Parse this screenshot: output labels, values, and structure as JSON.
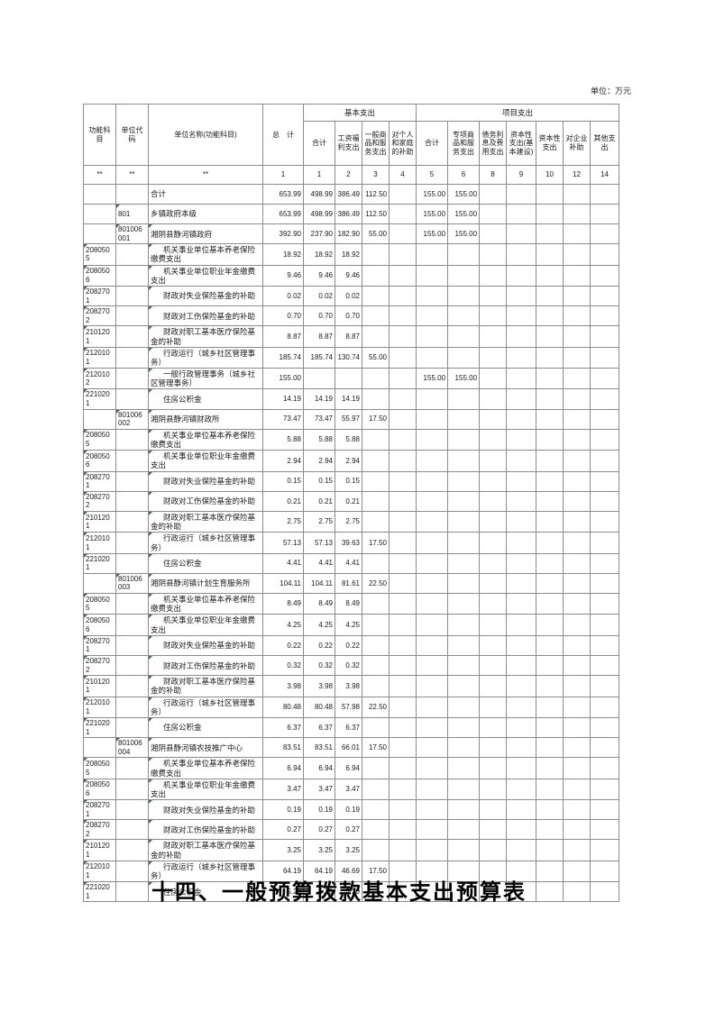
{
  "page": {
    "unit_note": "单位：万元",
    "title": "十四、一般预算拨款基本支出预算表"
  },
  "colors": {
    "grid_line": "#8c8c8c",
    "error_marker_green": "#2f7d32",
    "text": "#1a1a1a",
    "background": "#ffffff"
  },
  "table": {
    "header": {
      "func_code": "功能科目",
      "unit_code": "单位代码",
      "unit_name": "单位名称(功能科目)",
      "total": "总　计",
      "basic_group": "基本支出",
      "project_group": "项目支出",
      "basic_cols": [
        "合计",
        "工资福利支出",
        "一般商品和服务支出",
        "对个人和家庭的补助"
      ],
      "project_cols": [
        "合计",
        "专项商品和服务支出",
        "债务利息及费用支出",
        "资本性支出(基本建设)",
        "资本性支出",
        "对企业补助",
        "其他支出"
      ],
      "index_row": [
        "**",
        "**",
        "**",
        "1",
        "1",
        "2",
        "3",
        "4",
        "5",
        "6",
        "8",
        "9",
        "10",
        "12",
        "14"
      ]
    },
    "rows": [
      {
        "func": "",
        "unit": "",
        "name": "合计",
        "level": 0,
        "vals": [
          "653.99",
          "498.99",
          "386.49",
          "112.50",
          "",
          "155.00",
          "155.00",
          "",
          "",
          "",
          "",
          ""
        ]
      },
      {
        "func": "",
        "unit": "801",
        "name": "乡镇政府本级",
        "level": 0,
        "vals": [
          "653.99",
          "498.99",
          "386.49",
          "112.50",
          "",
          "155.00",
          "155.00",
          "",
          "",
          "",
          "",
          ""
        ]
      },
      {
        "func": "",
        "unit": "801006001",
        "name": "湘阴县静河镇政府",
        "level": 1,
        "vals": [
          "392.90",
          "237.90",
          "182.90",
          "55.00",
          "",
          "155.00",
          "155.00",
          "",
          "",
          "",
          "",
          ""
        ]
      },
      {
        "func": "2080505",
        "unit": "",
        "name": "机关事业单位基本养老保险缴费支出",
        "level": 2,
        "vals": [
          "18.92",
          "18.92",
          "18.92",
          "",
          "",
          "",
          "",
          "",
          "",
          "",
          "",
          ""
        ]
      },
      {
        "func": "2080506",
        "unit": "",
        "name": "机关事业单位职业年金缴费支出",
        "level": 2,
        "vals": [
          "9.46",
          "9.46",
          "9.46",
          "",
          "",
          "",
          "",
          "",
          "",
          "",
          "",
          ""
        ]
      },
      {
        "func": "2082701",
        "unit": "",
        "name": "财政对失业保险基金的补助",
        "level": 2,
        "vals": [
          "0.02",
          "0.02",
          "0.02",
          "",
          "",
          "",
          "",
          "",
          "",
          "",
          "",
          ""
        ]
      },
      {
        "func": "2082702",
        "unit": "",
        "name": "财政对工伤保险基金的补助",
        "level": 2,
        "vals": [
          "0.70",
          "0.70",
          "0.70",
          "",
          "",
          "",
          "",
          "",
          "",
          "",
          "",
          ""
        ]
      },
      {
        "func": "2101201",
        "unit": "",
        "name": "财政对职工基本医疗保险基金的补助",
        "level": 2,
        "vals": [
          "8.87",
          "8.87",
          "8.87",
          "",
          "",
          "",
          "",
          "",
          "",
          "",
          "",
          ""
        ]
      },
      {
        "func": "2120101",
        "unit": "",
        "name": "行政运行（城乡社区管理事务）",
        "level": 2,
        "vals": [
          "185.74",
          "185.74",
          "130.74",
          "55.00",
          "",
          "",
          "",
          "",
          "",
          "",
          "",
          ""
        ]
      },
      {
        "func": "2120102",
        "unit": "",
        "name": "一般行政管理事务（城乡社区管理事务）",
        "level": 2,
        "vals": [
          "155.00",
          "",
          "",
          "",
          "",
          "155.00",
          "155.00",
          "",
          "",
          "",
          "",
          ""
        ]
      },
      {
        "func": "2210201",
        "unit": "",
        "name": "住房公积金",
        "level": 2,
        "vals": [
          "14.19",
          "14.19",
          "14.19",
          "",
          "",
          "",
          "",
          "",
          "",
          "",
          "",
          ""
        ]
      },
      {
        "func": "",
        "unit": "801006002",
        "name": "湘阴县静河镇财政所",
        "level": 1,
        "vals": [
          "73.47",
          "73.47",
          "55.97",
          "17.50",
          "",
          "",
          "",
          "",
          "",
          "",
          "",
          ""
        ]
      },
      {
        "func": "2080505",
        "unit": "",
        "name": "机关事业单位基本养老保险缴费支出",
        "level": 2,
        "vals": [
          "5.88",
          "5.88",
          "5.88",
          "",
          "",
          "",
          "",
          "",
          "",
          "",
          "",
          ""
        ]
      },
      {
        "func": "2080506",
        "unit": "",
        "name": "机关事业单位职业年金缴费支出",
        "level": 2,
        "vals": [
          "2.94",
          "2.94",
          "2.94",
          "",
          "",
          "",
          "",
          "",
          "",
          "",
          "",
          ""
        ]
      },
      {
        "func": "2082701",
        "unit": "",
        "name": "财政对失业保险基金的补助",
        "level": 2,
        "vals": [
          "0.15",
          "0.15",
          "0.15",
          "",
          "",
          "",
          "",
          "",
          "",
          "",
          "",
          ""
        ]
      },
      {
        "func": "2082702",
        "unit": "",
        "name": "财政对工伤保险基金的补助",
        "level": 2,
        "vals": [
          "0.21",
          "0.21",
          "0.21",
          "",
          "",
          "",
          "",
          "",
          "",
          "",
          "",
          ""
        ]
      },
      {
        "func": "2101201",
        "unit": "",
        "name": "财政对职工基本医疗保险基金的补助",
        "level": 2,
        "vals": [
          "2.75",
          "2.75",
          "2.75",
          "",
          "",
          "",
          "",
          "",
          "",
          "",
          "",
          ""
        ]
      },
      {
        "func": "2120101",
        "unit": "",
        "name": "行政运行（城乡社区管理事务）",
        "level": 2,
        "vals": [
          "57.13",
          "57.13",
          "39.63",
          "17.50",
          "",
          "",
          "",
          "",
          "",
          "",
          "",
          ""
        ]
      },
      {
        "func": "2210201",
        "unit": "",
        "name": "住房公积金",
        "level": 2,
        "vals": [
          "4.41",
          "4.41",
          "4.41",
          "",
          "",
          "",
          "",
          "",
          "",
          "",
          "",
          ""
        ]
      },
      {
        "func": "",
        "unit": "801006003",
        "name": "湘阴县静河镇计划生育服务所",
        "level": 1,
        "vals": [
          "104.11",
          "104.11",
          "81.61",
          "22.50",
          "",
          "",
          "",
          "",
          "",
          "",
          "",
          ""
        ]
      },
      {
        "func": "2080505",
        "unit": "",
        "name": "机关事业单位基本养老保险缴费支出",
        "level": 2,
        "vals": [
          "8.49",
          "8.49",
          "8.49",
          "",
          "",
          "",
          "",
          "",
          "",
          "",
          "",
          ""
        ]
      },
      {
        "func": "2080506",
        "unit": "",
        "name": "机关事业单位职业年金缴费支出",
        "level": 2,
        "vals": [
          "4.25",
          "4.25",
          "4.25",
          "",
          "",
          "",
          "",
          "",
          "",
          "",
          "",
          ""
        ]
      },
      {
        "func": "2082701",
        "unit": "",
        "name": "财政对失业保险基金的补助",
        "level": 2,
        "vals": [
          "0.22",
          "0.22",
          "0.22",
          "",
          "",
          "",
          "",
          "",
          "",
          "",
          "",
          ""
        ]
      },
      {
        "func": "2082702",
        "unit": "",
        "name": "财政对工伤保险基金的补助",
        "level": 2,
        "vals": [
          "0.32",
          "0.32",
          "0.32",
          "",
          "",
          "",
          "",
          "",
          "",
          "",
          "",
          ""
        ]
      },
      {
        "func": "2101201",
        "unit": "",
        "name": "财政对职工基本医疗保险基金的补助",
        "level": 2,
        "vals": [
          "3.98",
          "3.98",
          "3.98",
          "",
          "",
          "",
          "",
          "",
          "",
          "",
          "",
          ""
        ]
      },
      {
        "func": "2120101",
        "unit": "",
        "name": "行政运行（城乡社区管理事务）",
        "level": 2,
        "vals": [
          "80.48",
          "80.48",
          "57.98",
          "22.50",
          "",
          "",
          "",
          "",
          "",
          "",
          "",
          ""
        ]
      },
      {
        "func": "2210201",
        "unit": "",
        "name": "住房公积金",
        "level": 2,
        "vals": [
          "6.37",
          "6.37",
          "6.37",
          "",
          "",
          "",
          "",
          "",
          "",
          "",
          "",
          ""
        ]
      },
      {
        "func": "",
        "unit": "801006004",
        "name": "湘阴县静河镇农技推广中心",
        "level": 1,
        "vals": [
          "83.51",
          "83.51",
          "66.01",
          "17.50",
          "",
          "",
          "",
          "",
          "",
          "",
          "",
          ""
        ]
      },
      {
        "func": "2080505",
        "unit": "",
        "name": "机关事业单位基本养老保险缴费支出",
        "level": 2,
        "vals": [
          "6.94",
          "6.94",
          "6.94",
          "",
          "",
          "",
          "",
          "",
          "",
          "",
          "",
          ""
        ]
      },
      {
        "func": "2080506",
        "unit": "",
        "name": "机关事业单位职业年金缴费支出",
        "level": 2,
        "vals": [
          "3.47",
          "3.47",
          "3.47",
          "",
          "",
          "",
          "",
          "",
          "",
          "",
          "",
          ""
        ]
      },
      {
        "func": "2082701",
        "unit": "",
        "name": "财政对失业保险基金的补助",
        "level": 2,
        "vals": [
          "0.19",
          "0.19",
          "0.19",
          "",
          "",
          "",
          "",
          "",
          "",
          "",
          "",
          ""
        ]
      },
      {
        "func": "2082702",
        "unit": "",
        "name": "财政对工伤保险基金的补助",
        "level": 2,
        "vals": [
          "0.27",
          "0.27",
          "0.27",
          "",
          "",
          "",
          "",
          "",
          "",
          "",
          "",
          ""
        ]
      },
      {
        "func": "2101201",
        "unit": "",
        "name": "财政对职工基本医疗保险基金的补助",
        "level": 2,
        "vals": [
          "3.25",
          "3.25",
          "3.25",
          "",
          "",
          "",
          "",
          "",
          "",
          "",
          "",
          ""
        ]
      },
      {
        "func": "2120101",
        "unit": "",
        "name": "行政运行（城乡社区管理事务）",
        "level": 2,
        "vals": [
          "64.19",
          "64.19",
          "46.69",
          "17.50",
          "",
          "",
          "",
          "",
          "",
          "",
          "",
          ""
        ]
      },
      {
        "func": "2210201",
        "unit": "",
        "name": "住房公积金",
        "level": 2,
        "vals": [
          "5.20",
          "5.20",
          "5.20",
          "",
          "",
          "",
          "",
          "",
          "",
          "",
          "",
          ""
        ]
      }
    ]
  }
}
